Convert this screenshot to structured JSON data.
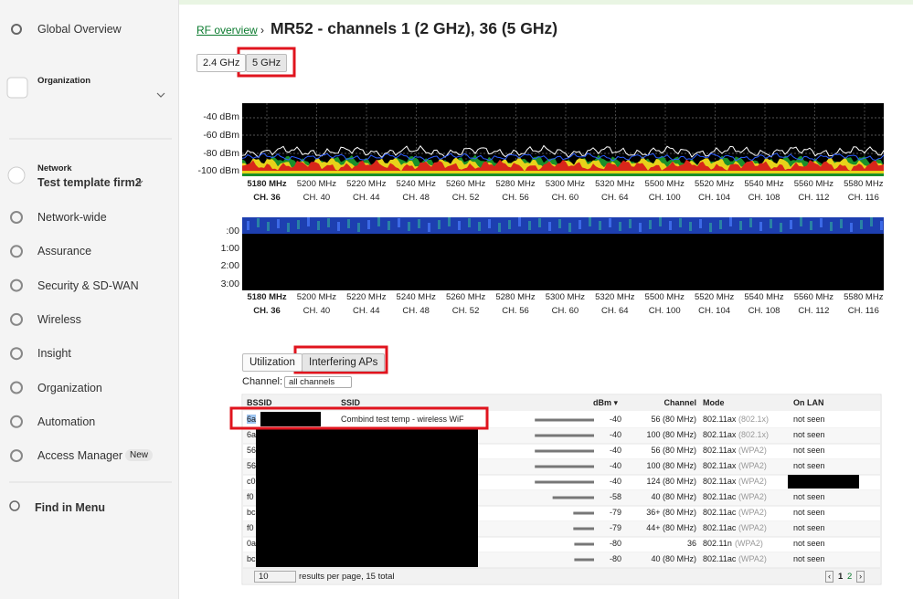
{
  "sidebar": {
    "global_overview": "Global Overview",
    "organization_label": "Organization",
    "network_label": "Network",
    "network_name": "Test template firm2",
    "items": [
      "Network-wide",
      "Assurance",
      "Security & SD-WAN",
      "Wireless",
      "Insight",
      "Organization",
      "Automation",
      "Access Manager"
    ],
    "new_badge": "New",
    "find_in_menu": "Find in Menu"
  },
  "header": {
    "breadcrumb": "RF overview",
    "title": "MR52 - channels 1 (2 GHz), 36 (5 GHz)"
  },
  "band_tabs": [
    "2.4 GHz",
    "5 GHz"
  ],
  "spectrum": {
    "y_labels": [
      "-40 dBm",
      "-60 dBm",
      "-80 dBm",
      "-100 dBm"
    ],
    "frequencies": [
      "5180 MHz",
      "5200 MHz",
      "5220 MHz",
      "5240 MHz",
      "5260 MHz",
      "5280 MHz",
      "5300 MHz",
      "5320 MHz",
      "5500 MHz",
      "5520 MHz",
      "5540 MHz",
      "5560 MHz",
      "5580 MHz"
    ],
    "channels": [
      "CH. 36",
      "CH. 40",
      "CH. 44",
      "CH. 48",
      "CH. 52",
      "CH. 56",
      "CH. 60",
      "CH. 64",
      "CH. 100",
      "CH. 104",
      "CH. 108",
      "CH. 112",
      "CH. 116"
    ],
    "time_labels": [
      ":00",
      "1:00",
      "2:00",
      "3:00"
    ]
  },
  "view_tabs": [
    "Utilization",
    "Interfering APs"
  ],
  "channel_filter": {
    "label": "Channel:",
    "value": "all channels"
  },
  "table": {
    "headers": [
      "BSSID",
      "SSID",
      "dBm ▾",
      "Channel",
      "Mode",
      "On LAN"
    ],
    "rows": [
      {
        "bssid": "6a",
        "ssid": "Combind test temp - wireless WiF",
        "dbm": -40,
        "channel": "56 (80 MHz)",
        "mode": "802.11ax",
        "security": "(802.1x)",
        "on_lan": "not seen"
      },
      {
        "bssid": "6a",
        "dbm": -40,
        "channel": "100 (80 MHz)",
        "mode": "802.11ax",
        "security": "(802.1x)",
        "on_lan": "not seen"
      },
      {
        "bssid": "56",
        "dbm": -40,
        "channel": "56 (80 MHz)",
        "mode": "802.11ax",
        "security": "(WPA2)",
        "on_lan": "not seen"
      },
      {
        "bssid": "56",
        "dbm": -40,
        "channel": "100 (80 MHz)",
        "mode": "802.11ax",
        "security": "(WPA2)",
        "on_lan": "not seen"
      },
      {
        "bssid": "c0",
        "dbm": -40,
        "channel": "124 (80 MHz)",
        "mode": "802.11ax",
        "security": "(WPA2)"
      },
      {
        "bssid": "f0",
        "dbm": -58,
        "channel": "40 (80 MHz)",
        "mode": "802.11ac",
        "security": "(WPA2)",
        "on_lan": "not seen"
      },
      {
        "bssid": "bc",
        "dbm": -79,
        "channel": "36+ (80 MHz)",
        "mode": "802.11ac",
        "security": "(WPA2)",
        "on_lan": "not seen"
      },
      {
        "bssid": "f0",
        "dbm": -79,
        "channel": "44+ (80 MHz)",
        "mode": "802.11ac",
        "security": "(WPA2)",
        "on_lan": "not seen"
      },
      {
        "bssid": "0a",
        "dbm": -80,
        "channel": "36",
        "mode": "802.11n",
        "security": "(WPA2)",
        "on_lan": "not seen"
      },
      {
        "bssid": "bc",
        "dbm": -80,
        "channel": "40 (80 MHz)",
        "mode": "802.11ac",
        "security": "(WPA2)",
        "on_lan": "not seen"
      }
    ]
  },
  "footer": {
    "per_page": "10",
    "summary": "results per page, 15 total",
    "pages": [
      "1",
      "2"
    ]
  }
}
